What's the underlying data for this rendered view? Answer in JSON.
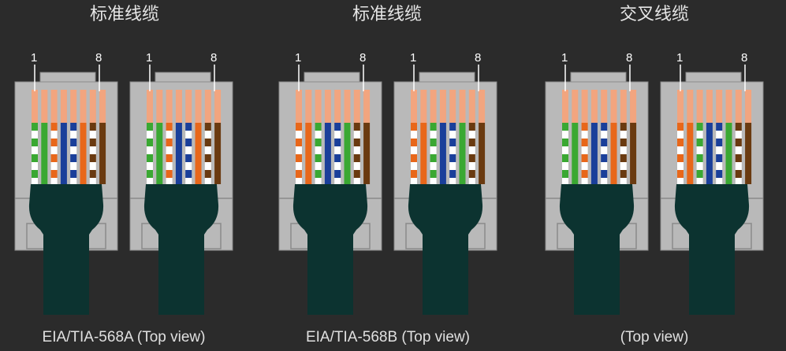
{
  "groups": [
    {
      "title": "标准线缆",
      "caption": "EIA/TIA-568A (Top view)",
      "plugs": [
        {
          "pin_first": "1",
          "pin_last": "8",
          "wiring": [
            "white-green",
            "green",
            "white-orange",
            "blue",
            "white-blue",
            "orange",
            "white-brown",
            "brown"
          ]
        },
        {
          "pin_first": "1",
          "pin_last": "8",
          "wiring": [
            "white-green",
            "green",
            "white-orange",
            "blue",
            "white-blue",
            "orange",
            "white-brown",
            "brown"
          ]
        }
      ]
    },
    {
      "title": "标准线缆",
      "caption": "EIA/TIA-568B (Top view)",
      "plugs": [
        {
          "pin_first": "1",
          "pin_last": "8",
          "wiring": [
            "white-orange",
            "orange",
            "white-green",
            "blue",
            "white-blue",
            "green",
            "white-brown",
            "brown"
          ]
        },
        {
          "pin_first": "1",
          "pin_last": "8",
          "wiring": [
            "white-orange",
            "orange",
            "white-green",
            "blue",
            "white-blue",
            "green",
            "white-brown",
            "brown"
          ]
        }
      ]
    },
    {
      "title": "交叉线缆",
      "caption": "(Top view)",
      "plugs": [
        {
          "pin_first": "1",
          "pin_last": "8",
          "wiring": [
            "white-green",
            "green",
            "white-orange",
            "blue",
            "white-blue",
            "orange",
            "white-brown",
            "brown"
          ]
        },
        {
          "pin_first": "1",
          "pin_last": "8",
          "wiring": [
            "white-orange",
            "orange",
            "white-green",
            "blue",
            "white-blue",
            "green",
            "white-brown",
            "brown"
          ]
        }
      ]
    }
  ],
  "colors": {
    "background": "#2b2b2b",
    "plug_body": "#b9b9b9",
    "plug_outline": "#8a8a8a",
    "contact": "#f2a57f",
    "boot": "#0c3330",
    "green": "#3aa832",
    "orange": "#e8671a",
    "blue": "#1a3f9a",
    "brown": "#6a3a10",
    "white": "#ffffff"
  }
}
